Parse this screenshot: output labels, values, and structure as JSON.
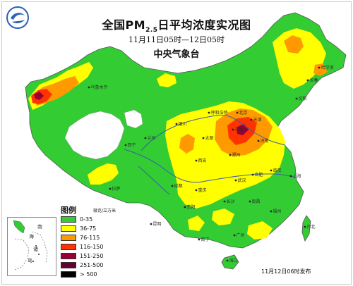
{
  "title": {
    "main_prefix": "全国PM",
    "main_sub": "2.5",
    "main_suffix": "日平均浓度实况图",
    "period": "11月11日05时—12日05时",
    "agency": "中央气象台"
  },
  "legend": {
    "heading": "图例",
    "unit": "微克/立方米",
    "items": [
      {
        "label": "0-35",
        "color": "#33cc33"
      },
      {
        "label": "36-75",
        "color": "#ffff00"
      },
      {
        "label": "76-115",
        "color": "#ff9900"
      },
      {
        "label": "116-150",
        "color": "#ff3300"
      },
      {
        "label": "151-250",
        "color": "#990033"
      },
      {
        "label": "251-500",
        "color": "#660033"
      },
      {
        "label": "> 500",
        "color": "#000000"
      }
    ]
  },
  "inset": {
    "labels": [
      "南",
      "海",
      "诸",
      "岛"
    ]
  },
  "release": "11月12日06时发布",
  "cities": [
    "乌鲁木齐",
    "哈尔滨",
    "长春",
    "沈阳",
    "呼和浩特",
    "北京",
    "天津",
    "石家庄",
    "太原",
    "济南",
    "银川",
    "兰州",
    "西宁",
    "郑州",
    "西安",
    "南京",
    "合肥",
    "上海",
    "武汉",
    "成都",
    "重庆",
    "拉萨",
    "长沙",
    "贵阳",
    "南昌",
    "福州",
    "昆明",
    "广州",
    "南宁",
    "海口",
    "台北"
  ],
  "colors": {
    "water": "#3a5fa8",
    "border": "#555555"
  }
}
